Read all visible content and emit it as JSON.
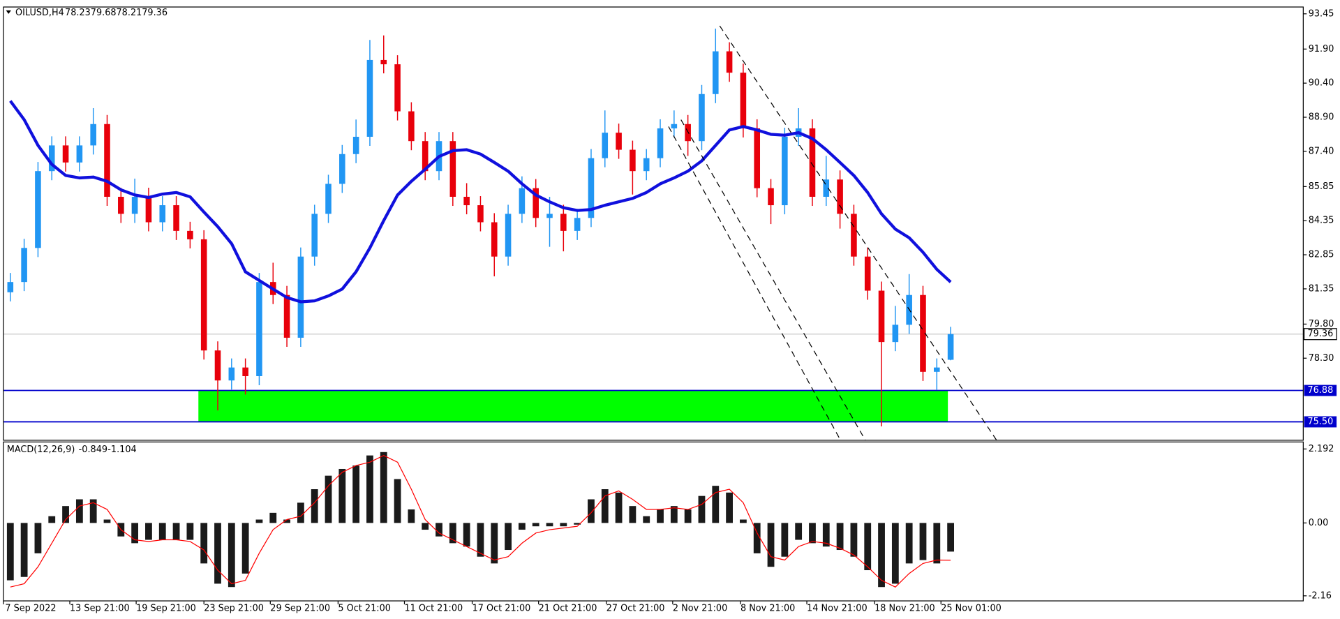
{
  "chart_data": [
    {
      "type": "candlestick",
      "title": "OILUSD,H4",
      "xlim": [
        -0.5,
        93.5
      ],
      "xticks": [
        {
          "value": -0.5,
          "label": "7 Sep 2022"
        },
        {
          "value": 4.3,
          "label": "13 Sep 21:00"
        },
        {
          "value": 9.1,
          "label": "19 Sep 21:00"
        },
        {
          "value": 14.0,
          "label": "23 Sep 21:00"
        },
        {
          "value": 18.8,
          "label": "29 Sep 21:00"
        },
        {
          "value": 23.7,
          "label": "5 Oct 21:00"
        },
        {
          "value": 28.5,
          "label": "11 Oct 21:00"
        },
        {
          "value": 33.4,
          "label": "17 Oct 21:00"
        },
        {
          "value": 38.2,
          "label": "21 Oct 21:00"
        },
        {
          "value": 43.1,
          "label": "27 Oct 21:00"
        },
        {
          "value": 47.9,
          "label": "2 Nov 21:00"
        },
        {
          "value": 52.8,
          "label": "8 Nov 21:00"
        },
        {
          "value": 57.6,
          "label": "14 Nov 21:00"
        },
        {
          "value": 62.5,
          "label": "18 Nov 21:00"
        },
        {
          "value": 67.3,
          "label": "25 Nov 01:00"
        }
      ],
      "ylim": [
        74.69,
        93.75
      ],
      "yticks": [
        93.45,
        {
          "value": 91.9,
          "label": "91.90"
        },
        {
          "value": 90.4,
          "label": "90.40"
        },
        {
          "value": 88.9,
          "label": "88.90"
        },
        {
          "value": 87.4,
          "label": "87.40"
        },
        85.85,
        84.35,
        82.85,
        81.35,
        {
          "value": 79.8,
          "label": "79.80"
        },
        {
          "value": 78.3,
          "label": "78.30"
        }
      ],
      "open": [
        81.2,
        81.65,
        83.15,
        86.53,
        87.66,
        86.91,
        87.66,
        88.6,
        85.4,
        84.65,
        85.4,
        84.28,
        85.03,
        83.9,
        83.53,
        78.64,
        77.32,
        77.89,
        77.51,
        81.65,
        81.08,
        79.2,
        82.77,
        84.65,
        85.97,
        87.28,
        88.04,
        91.42,
        91.23,
        89.16,
        87.85,
        86.53,
        87.85,
        85.4,
        85.03,
        84.28,
        82.77,
        84.65,
        85.78,
        84.47,
        84.65,
        83.9,
        84.47,
        87.1,
        88.22,
        87.47,
        86.53,
        87.1,
        88.41,
        88.6,
        87.85,
        89.92,
        91.8,
        90.86,
        88.41,
        85.78,
        85.03,
        88.04,
        88.41,
        85.4,
        86.16,
        84.65,
        82.77,
        81.27,
        79.01,
        79.77,
        81.08,
        77.7,
        78.23
      ],
      "high": [
        82.05,
        83.55,
        86.93,
        88.06,
        88.06,
        88.06,
        89.3,
        89.0,
        85.8,
        86.2,
        85.8,
        85.43,
        85.43,
        84.3,
        83.93,
        79.04,
        78.29,
        78.29,
        82.05,
        82.5,
        81.48,
        83.17,
        85.05,
        86.37,
        87.68,
        88.8,
        92.3,
        92.5,
        91.63,
        89.56,
        88.25,
        88.25,
        88.25,
        86.0,
        85.43,
        84.68,
        85.05,
        86.3,
        86.18,
        85.4,
        85.05,
        84.87,
        87.5,
        89.2,
        88.62,
        87.87,
        87.5,
        88.81,
        89.2,
        89.0,
        90.32,
        92.8,
        92.2,
        91.26,
        88.81,
        86.18,
        88.44,
        89.3,
        88.81,
        87.2,
        86.56,
        85.05,
        83.17,
        81.67,
        80.6,
        82.0,
        81.48,
        78.29,
        79.68
      ],
      "low": [
        80.8,
        81.25,
        82.75,
        86.13,
        86.51,
        86.51,
        87.26,
        85.0,
        84.25,
        84.25,
        83.88,
        83.88,
        83.5,
        83.13,
        78.24,
        76.0,
        76.92,
        76.7,
        77.11,
        80.68,
        78.8,
        78.8,
        82.37,
        84.25,
        85.57,
        86.88,
        87.64,
        90.83,
        88.76,
        87.45,
        86.13,
        86.13,
        85.0,
        84.63,
        83.88,
        81.9,
        82.37,
        84.25,
        84.07,
        83.2,
        83.0,
        83.5,
        84.07,
        86.7,
        87.07,
        85.5,
        86.13,
        86.7,
        88.01,
        87.2,
        87.45,
        89.52,
        90.46,
        88.01,
        85.38,
        84.2,
        84.63,
        87.64,
        85.0,
        85.0,
        84.0,
        82.37,
        80.87,
        75.3,
        78.61,
        79.37,
        77.3,
        76.9,
        78.21
      ],
      "close": [
        81.65,
        83.15,
        86.53,
        87.66,
        86.91,
        87.66,
        88.6,
        85.4,
        84.65,
        85.4,
        84.28,
        85.03,
        83.9,
        83.53,
        78.64,
        77.32,
        77.89,
        77.51,
        81.65,
        81.08,
        79.2,
        82.77,
        84.65,
        85.97,
        87.28,
        88.04,
        91.42,
        91.23,
        89.16,
        87.85,
        86.53,
        87.85,
        85.4,
        85.03,
        84.28,
        82.77,
        84.65,
        85.78,
        84.47,
        84.65,
        83.9,
        84.47,
        87.1,
        88.22,
        87.47,
        86.53,
        87.1,
        88.41,
        88.6,
        87.85,
        89.92,
        91.8,
        90.86,
        88.41,
        85.78,
        85.03,
        88.04,
        88.41,
        85.4,
        86.16,
        84.65,
        82.77,
        81.27,
        79.01,
        79.77,
        81.08,
        77.7,
        77.89,
        79.36
      ],
      "up_color": "#2196f3",
      "down_color": "#e8000b",
      "moving_average": {
        "color": "#1010dd",
        "values": [
          89.62,
          88.79,
          87.66,
          86.83,
          86.34,
          86.23,
          86.27,
          86.08,
          85.71,
          85.48,
          85.37,
          85.52,
          85.59,
          85.4,
          84.73,
          84.09,
          83.34,
          82.1,
          81.72,
          81.34,
          80.97,
          80.78,
          80.82,
          81.04,
          81.34,
          82.1,
          83.15,
          84.35,
          85.48,
          86.08,
          86.61,
          87.17,
          87.43,
          87.47,
          87.28,
          86.91,
          86.53,
          85.97,
          85.48,
          85.18,
          84.92,
          84.8,
          84.84,
          85.03,
          85.18,
          85.33,
          85.59,
          85.97,
          86.23,
          86.53,
          86.98,
          87.66,
          88.34,
          88.49,
          88.34,
          88.15,
          88.11,
          88.22,
          87.96,
          87.47,
          86.91,
          86.34,
          85.59,
          84.65,
          83.98,
          83.6,
          82.96,
          82.21,
          81.65
        ]
      },
      "levels": [
        76.88,
        {
          "value": 75.5,
          "label": "75.50"
        }
      ],
      "level_color": "#0000cc",
      "zone": {
        "x": [
          13.6,
          67.8
        ],
        "color": "#00ff00"
      },
      "trendlines": [
        {
          "x": [
            51.3,
            71.4
          ],
          "y": [
            92.92,
            74.62
          ]
        },
        {
          "x": [
            47.6,
            60.1
          ],
          "y": [
            88.49,
            74.62
          ]
        },
        {
          "x": [
            48.5,
            61.9
          ],
          "y": [
            88.79,
            74.62
          ]
        }
      ]
    },
    {
      "type": "macd",
      "title": "MACD(12,26,9)",
      "ylim": [
        -2.31,
        2.4
      ],
      "yticks": [
        2.192,
        {
          "value": 0,
          "label": "0.00"
        },
        -2.16
      ],
      "values": [
        -1.7,
        -1.6,
        -0.9,
        0.2,
        0.5,
        0.7,
        0.7,
        0.1,
        -0.4,
        -0.6,
        -0.5,
        -0.5,
        -0.5,
        -0.5,
        -1.2,
        -1.8,
        -1.9,
        -1.5,
        0.1,
        0.3,
        0.1,
        0.6,
        1.0,
        1.4,
        1.6,
        1.7,
        2.0,
        2.1,
        1.3,
        0.4,
        -0.2,
        -0.4,
        -0.6,
        -0.7,
        -1.0,
        -1.2,
        -0.8,
        -0.2,
        -0.1,
        -0.1,
        -0.1,
        -0.05,
        0.7,
        1.0,
        0.9,
        0.5,
        0.2,
        0.4,
        0.5,
        0.4,
        0.8,
        1.1,
        0.9,
        0.1,
        -0.9,
        -1.3,
        -1.0,
        -0.5,
        -0.6,
        -0.7,
        -0.8,
        -1.0,
        -1.4,
        -1.9,
        -1.8,
        -1.2,
        -1.1,
        -1.2,
        -0.849
      ],
      "signal": [
        -1.9,
        -1.8,
        -1.3,
        -0.6,
        0.1,
        0.5,
        0.6,
        0.4,
        -0.2,
        -0.5,
        -0.55,
        -0.5,
        -0.5,
        -0.55,
        -0.8,
        -1.4,
        -1.8,
        -1.7,
        -0.9,
        -0.2,
        0.1,
        0.2,
        0.6,
        1.1,
        1.5,
        1.7,
        1.8,
        2.0,
        1.8,
        1.0,
        0.1,
        -0.3,
        -0.5,
        -0.7,
        -0.9,
        -1.1,
        -1.0,
        -0.6,
        -0.3,
        -0.2,
        -0.15,
        -0.1,
        0.3,
        0.8,
        0.95,
        0.7,
        0.4,
        0.4,
        0.45,
        0.4,
        0.55,
        0.9,
        1.0,
        0.6,
        -0.3,
        -1.0,
        -1.1,
        -0.7,
        -0.55,
        -0.6,
        -0.75,
        -0.95,
        -1.3,
        -1.7,
        -1.9,
        -1.5,
        -1.2,
        -1.1,
        -1.104
      ],
      "bar_color": "#1a1a1a",
      "signal_color": "#ff0000"
    }
  ]
}
